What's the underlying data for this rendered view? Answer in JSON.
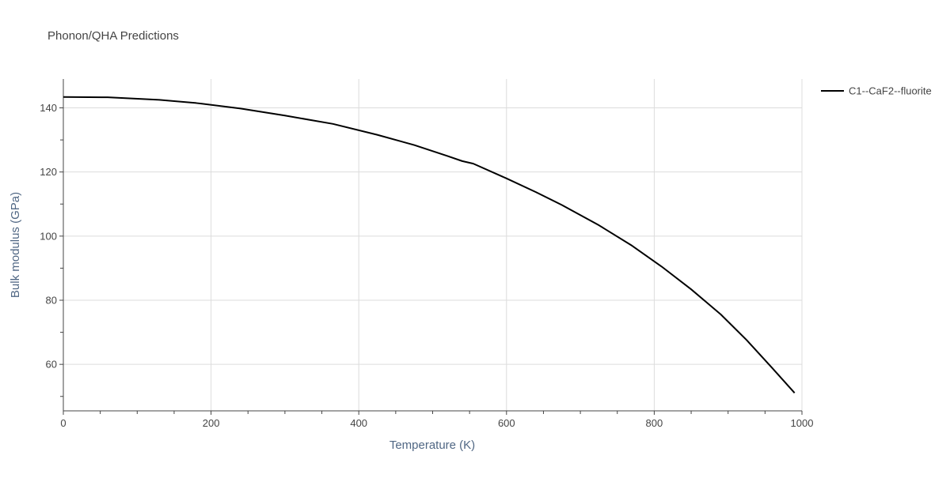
{
  "chart_data": {
    "type": "line",
    "title": "Phonon/QHA Predictions",
    "xlabel": "Temperature (K)",
    "ylabel": "Bulk modulus (GPa)",
    "xlim": [
      0,
      1000
    ],
    "ylim": [
      45.5,
      149
    ],
    "x_ticks": [
      0,
      200,
      400,
      600,
      800,
      1000
    ],
    "x_tick_labels": [
      "0",
      "200",
      "400",
      "600",
      "800",
      "1000"
    ],
    "y_ticks": [
      60,
      80,
      100,
      120,
      140
    ],
    "y_tick_labels": [
      "60",
      "80",
      "100",
      "120",
      "140"
    ],
    "grid": true,
    "legend_position": "top-right, outside plot",
    "series": [
      {
        "name": "C1--CaF2--fluorite",
        "color": "#000000",
        "x": [
          0,
          60,
          130,
          180,
          240,
          300,
          365,
          425,
          475,
          520,
          540,
          555,
          600,
          640,
          675,
          725,
          770,
          810,
          850,
          890,
          925,
          960,
          990
        ],
        "y": [
          143.4,
          143.3,
          142.5,
          141.5,
          139.8,
          137.6,
          135.0,
          131.6,
          128.4,
          125.0,
          123.4,
          122.6,
          118.0,
          113.7,
          109.7,
          103.4,
          97.0,
          90.5,
          83.4,
          75.6,
          67.6,
          58.8,
          51.1
        ]
      }
    ]
  }
}
